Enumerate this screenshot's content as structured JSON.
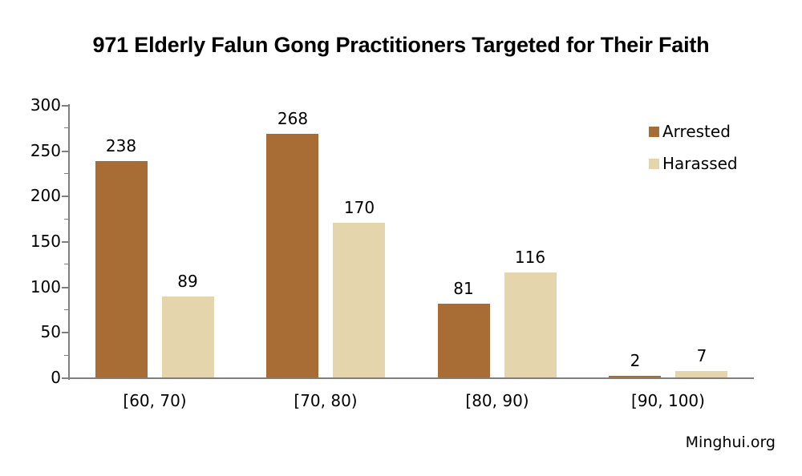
{
  "page": {
    "credit": "Minghui.org"
  },
  "chart_data": {
    "type": "bar",
    "title": "971 Elderly Falun Gong Practitioners Targeted for Their Faith",
    "categories": [
      "[60, 70)",
      "[70, 80)",
      "[80, 90)",
      "[90, 100)"
    ],
    "series": [
      {
        "name": "Arrested",
        "color": "#A86D35",
        "values": [
          238,
          268,
          81,
          2
        ]
      },
      {
        "name": "Harassed",
        "color": "#E4D5AC",
        "values": [
          89,
          170,
          116,
          7
        ]
      }
    ],
    "xlabel": "",
    "ylabel": "",
    "ylim": [
      0,
      300
    ],
    "yticks": [
      0,
      50,
      100,
      150,
      200,
      250,
      300
    ],
    "minor_tick_step": 25,
    "grid": false,
    "legend_position": "top-right",
    "axis_color": "#7F7F7F",
    "text_color": "#000000"
  }
}
